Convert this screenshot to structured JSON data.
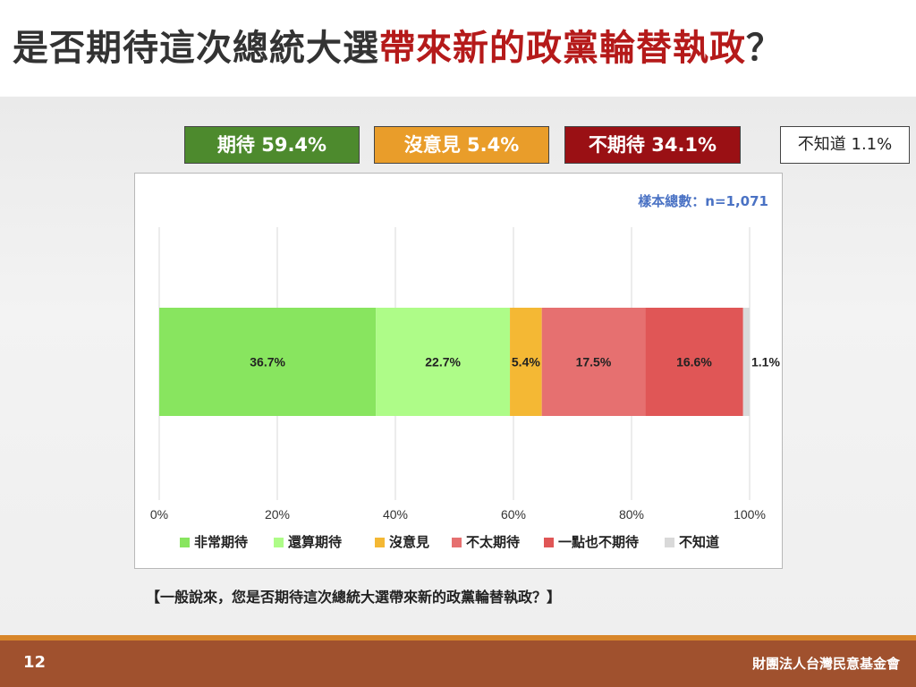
{
  "page": {
    "title_part1": "是否期待這次總統大選",
    "title_part2": "帶來新的政黨輪替執政",
    "title_part3": "？",
    "question": "【一般說來，您是否期待這次總統大選帶來新的政黨輪替執政？】",
    "page_number": "12",
    "organization": "財團法人台灣民意基金會"
  },
  "summary": {
    "expect": "期待 59.4%",
    "no_opinion": "沒意見 5.4%",
    "not_expect": "不期待 34.1%",
    "unknown": "不知道 1.1%"
  },
  "chart_data": {
    "type": "bar",
    "orientation": "horizontal",
    "stacked": true,
    "sample_size_label": "樣本總數：n=1,071",
    "series": [
      {
        "name": "非常期待",
        "value": 36.7,
        "label": "36.7%",
        "color": "#88e55f"
      },
      {
        "name": "還算期待",
        "value": 22.7,
        "label": "22.7%",
        "color": "#aefc88"
      },
      {
        "name": "沒意見",
        "value": 5.4,
        "label": "5.4%",
        "color": "#f4b834"
      },
      {
        "name": "不太期待",
        "value": 17.5,
        "label": "17.5%",
        "color": "#e67070"
      },
      {
        "name": "一點也不期待",
        "value": 16.6,
        "label": "16.6%",
        "color": "#e05656"
      },
      {
        "name": "不知道",
        "value": 1.1,
        "label": "1.1%",
        "color": "#d9d9d9"
      }
    ],
    "xlim": [
      0,
      100
    ],
    "xticks": [
      0,
      20,
      40,
      60,
      80,
      100
    ],
    "xtick_labels": [
      "0%",
      "20%",
      "40%",
      "60%",
      "80%",
      "100%"
    ],
    "grid": true,
    "legend_position": "bottom"
  }
}
